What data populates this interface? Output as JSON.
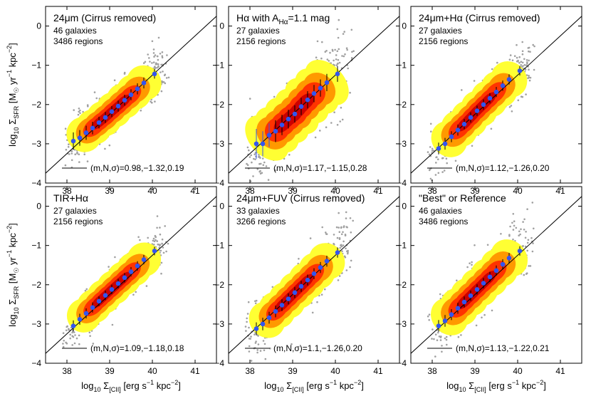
{
  "colors": {
    "scatter": "#a0a0a0",
    "density_low": "#ffff33",
    "density_mid": "#ff9900",
    "density_high": "#ff3300",
    "density_core": "#cc0000",
    "binned_points": "#3355ee",
    "errorbars": "#000000",
    "fit_line": "#000000"
  },
  "chart_data": [
    {
      "type": "scatter",
      "title": "24μm (Cirrus removed)",
      "galaxies": "46 galaxies",
      "regions": "3486 regions",
      "fit_text": "(m,N,σ)=0.98,−1.32,0.19",
      "fit": {
        "m": 0.98,
        "N": -1.32,
        "sigma": 0.19
      },
      "xlabel": "",
      "ylabel": "log10 ΣSFR [M☉ yr−1 kpc−2]",
      "xlim": [
        37.5,
        41.5
      ],
      "ylim": [
        -4,
        0.5
      ],
      "binned": [
        {
          "x": 38.15,
          "y": -2.93,
          "err": 0.22
        },
        {
          "x": 38.3,
          "y": -2.85,
          "err": 0.2
        },
        {
          "x": 38.45,
          "y": -2.72,
          "err": 0.18
        },
        {
          "x": 38.6,
          "y": -2.6,
          "err": 0.16
        },
        {
          "x": 38.75,
          "y": -2.46,
          "err": 0.15
        },
        {
          "x": 38.9,
          "y": -2.33,
          "err": 0.14
        },
        {
          "x": 39.05,
          "y": -2.18,
          "err": 0.14
        },
        {
          "x": 39.2,
          "y": -2.04,
          "err": 0.14
        },
        {
          "x": 39.35,
          "y": -1.89,
          "err": 0.14
        },
        {
          "x": 39.5,
          "y": -1.75,
          "err": 0.14
        },
        {
          "x": 39.65,
          "y": -1.6,
          "err": 0.14
        },
        {
          "x": 39.8,
          "y": -1.45,
          "err": 0.14
        },
        {
          "x": 40.05,
          "y": -1.22,
          "err": 0.12
        }
      ]
    },
    {
      "type": "scatter",
      "title": "Hα with A",
      "title_sub": "Hα",
      "title_rest": "=1.1 mag",
      "galaxies": "27 galaxies",
      "regions": "2156 regions",
      "fit_text": "(m,N,σ)=1.17,−1.15,0.28",
      "fit": {
        "m": 1.17,
        "N": -1.15,
        "sigma": 0.28
      },
      "xlabel": "",
      "ylabel": "",
      "xlim": [
        37.5,
        41.5
      ],
      "ylim": [
        -4,
        0.5
      ],
      "binned": [
        {
          "x": 38.15,
          "y": -3.0,
          "err": 0.38
        },
        {
          "x": 38.3,
          "y": -3.0,
          "err": 0.32
        },
        {
          "x": 38.45,
          "y": -2.78,
          "err": 0.3
        },
        {
          "x": 38.6,
          "y": -2.68,
          "err": 0.28
        },
        {
          "x": 38.75,
          "y": -2.52,
          "err": 0.26
        },
        {
          "x": 38.9,
          "y": -2.37,
          "err": 0.24
        },
        {
          "x": 39.05,
          "y": -2.24,
          "err": 0.22
        },
        {
          "x": 39.2,
          "y": -2.05,
          "err": 0.22
        },
        {
          "x": 39.35,
          "y": -1.88,
          "err": 0.22
        },
        {
          "x": 39.5,
          "y": -1.72,
          "err": 0.22
        },
        {
          "x": 39.65,
          "y": -1.58,
          "err": 0.22
        },
        {
          "x": 39.8,
          "y": -1.44,
          "err": 0.22
        },
        {
          "x": 40.05,
          "y": -1.22,
          "err": 0.2
        }
      ]
    },
    {
      "type": "scatter",
      "title": "24μm+Hα (Cirrus removed)",
      "galaxies": "27 galaxies",
      "regions": "2156 regions",
      "fit_text": "(m,N,σ)=1.12,−1.26,0.20",
      "fit": {
        "m": 1.12,
        "N": -1.26,
        "sigma": 0.2
      },
      "xlabel": "",
      "ylabel": "",
      "xlim": [
        37.5,
        41.5
      ],
      "ylim": [
        -4,
        0.5
      ],
      "binned": [
        {
          "x": 38.15,
          "y": -3.12,
          "err": 0.15
        },
        {
          "x": 38.3,
          "y": -3.0,
          "err": 0.15
        },
        {
          "x": 38.45,
          "y": -2.82,
          "err": 0.14
        },
        {
          "x": 38.6,
          "y": -2.65,
          "err": 0.14
        },
        {
          "x": 38.75,
          "y": -2.5,
          "err": 0.13
        },
        {
          "x": 38.9,
          "y": -2.33,
          "err": 0.13
        },
        {
          "x": 39.05,
          "y": -2.16,
          "err": 0.13
        },
        {
          "x": 39.2,
          "y": -2.0,
          "err": 0.13
        },
        {
          "x": 39.35,
          "y": -1.84,
          "err": 0.13
        },
        {
          "x": 39.5,
          "y": -1.68,
          "err": 0.13
        },
        {
          "x": 39.65,
          "y": -1.52,
          "err": 0.13
        },
        {
          "x": 39.8,
          "y": -1.36,
          "err": 0.13
        },
        {
          "x": 40.05,
          "y": -1.14,
          "err": 0.12
        }
      ]
    },
    {
      "type": "scatter",
      "title": "TIR+Hα",
      "galaxies": "27 galaxies",
      "regions": "2156 regions",
      "fit_text": "(m,N,σ)=1.09,−1.18,0.18",
      "fit": {
        "m": 1.09,
        "N": -1.18,
        "sigma": 0.18
      },
      "xlabel": "log10 Σ[CII] [erg s−1 kpc−2]",
      "ylabel": "log10 ΣSFR [M☉ yr−1 kpc−2]",
      "xlim": [
        37.5,
        41.5
      ],
      "ylim": [
        -4,
        0.5
      ],
      "binned": [
        {
          "x": 38.15,
          "y": -3.05,
          "err": 0.14
        },
        {
          "x": 38.3,
          "y": -2.88,
          "err": 0.14
        },
        {
          "x": 38.45,
          "y": -2.73,
          "err": 0.13
        },
        {
          "x": 38.6,
          "y": -2.58,
          "err": 0.13
        },
        {
          "x": 38.75,
          "y": -2.42,
          "err": 0.12
        },
        {
          "x": 38.9,
          "y": -2.27,
          "err": 0.12
        },
        {
          "x": 39.05,
          "y": -2.12,
          "err": 0.12
        },
        {
          "x": 39.2,
          "y": -1.97,
          "err": 0.12
        },
        {
          "x": 39.35,
          "y": -1.82,
          "err": 0.12
        },
        {
          "x": 39.5,
          "y": -1.67,
          "err": 0.12
        },
        {
          "x": 39.65,
          "y": -1.52,
          "err": 0.12
        },
        {
          "x": 39.8,
          "y": -1.36,
          "err": 0.12
        },
        {
          "x": 40.05,
          "y": -1.14,
          "err": 0.11
        }
      ]
    },
    {
      "type": "scatter",
      "title": "24μm+FUV (Cirrus removed)",
      "galaxies": "33 galaxies",
      "regions": "3266 regions",
      "fit_text": "(m,N,σ)=1.1,−1.26,0.20",
      "fit": {
        "m": 1.1,
        "N": -1.26,
        "sigma": 0.2
      },
      "xlabel": "log10 Σ[CII] [erg s−1 kpc−2]",
      "ylabel": "",
      "xlim": [
        37.5,
        41.5
      ],
      "ylim": [
        -4,
        0.5
      ],
      "binned": [
        {
          "x": 38.15,
          "y": -3.12,
          "err": 0.16
        },
        {
          "x": 38.3,
          "y": -3.0,
          "err": 0.16
        },
        {
          "x": 38.45,
          "y": -2.84,
          "err": 0.15
        },
        {
          "x": 38.6,
          "y": -2.68,
          "err": 0.15
        },
        {
          "x": 38.75,
          "y": -2.52,
          "err": 0.15
        },
        {
          "x": 38.9,
          "y": -2.36,
          "err": 0.14
        },
        {
          "x": 39.05,
          "y": -2.2,
          "err": 0.14
        },
        {
          "x": 39.2,
          "y": -2.04,
          "err": 0.14
        },
        {
          "x": 39.35,
          "y": -1.88,
          "err": 0.14
        },
        {
          "x": 39.5,
          "y": -1.72,
          "err": 0.14
        },
        {
          "x": 39.65,
          "y": -1.56,
          "err": 0.14
        },
        {
          "x": 39.8,
          "y": -1.4,
          "err": 0.14
        },
        {
          "x": 40.05,
          "y": -1.18,
          "err": 0.13
        }
      ]
    },
    {
      "type": "scatter",
      "title": "\"Best\" or Reference",
      "galaxies": "46 galaxies",
      "regions": "3486 regions",
      "fit_text": "(m,N,σ)=1.13,−1.22,0.21",
      "fit": {
        "m": 1.13,
        "N": -1.22,
        "sigma": 0.21
      },
      "xlabel": "log10 Σ[CII] [erg s−1 kpc−2]",
      "ylabel": "",
      "xlim": [
        37.5,
        41.5
      ],
      "ylim": [
        -4,
        0.5
      ],
      "binned": [
        {
          "x": 38.15,
          "y": -3.05,
          "err": 0.15
        },
        {
          "x": 38.3,
          "y": -2.92,
          "err": 0.15
        },
        {
          "x": 38.45,
          "y": -2.76,
          "err": 0.14
        },
        {
          "x": 38.6,
          "y": -2.6,
          "err": 0.14
        },
        {
          "x": 38.75,
          "y": -2.44,
          "err": 0.14
        },
        {
          "x": 38.9,
          "y": -2.28,
          "err": 0.13
        },
        {
          "x": 39.05,
          "y": -2.12,
          "err": 0.13
        },
        {
          "x": 39.2,
          "y": -1.96,
          "err": 0.13
        },
        {
          "x": 39.35,
          "y": -1.8,
          "err": 0.13
        },
        {
          "x": 39.5,
          "y": -1.64,
          "err": 0.13
        },
        {
          "x": 39.65,
          "y": -1.48,
          "err": 0.13
        },
        {
          "x": 39.8,
          "y": -1.32,
          "err": 0.13
        },
        {
          "x": 40.05,
          "y": -1.14,
          "err": 0.12
        }
      ]
    }
  ],
  "axes": {
    "x_ticks": [
      38,
      39,
      40,
      41
    ],
    "y_ticks": [
      0,
      -1,
      -2,
      -3,
      -4
    ],
    "x_tick_labels": [
      "38",
      "39",
      "40",
      "41"
    ],
    "y_tick_labels": [
      "0",
      "−1",
      "−2",
      "−3",
      "−4"
    ]
  }
}
